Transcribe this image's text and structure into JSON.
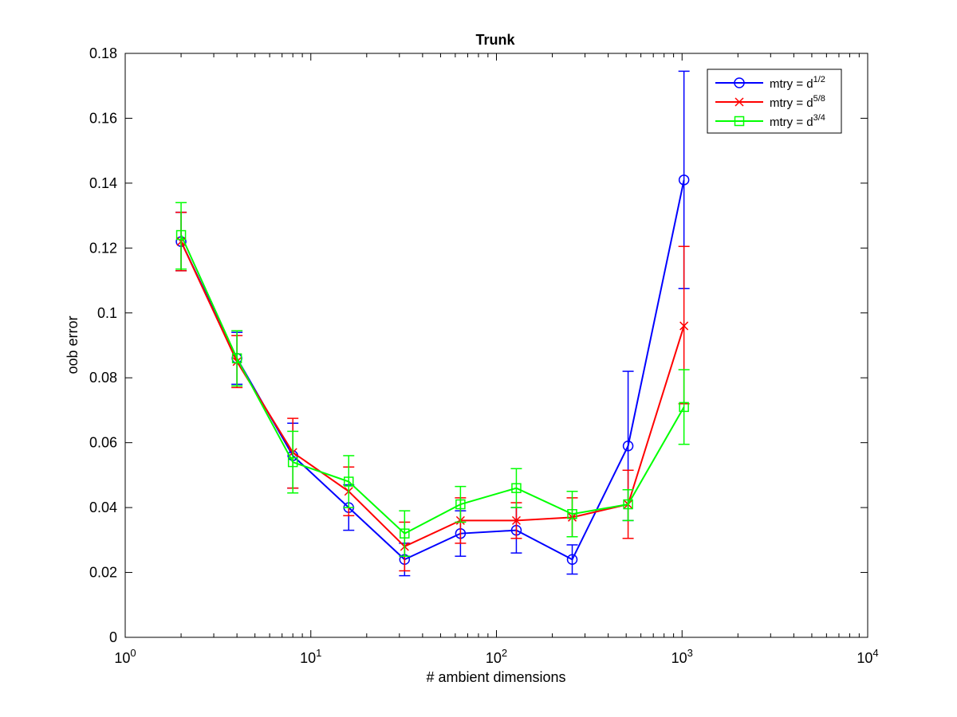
{
  "chart_data": {
    "type": "line",
    "title": "Trunk",
    "xlabel": "# ambient dimensions",
    "ylabel": "oob error",
    "xscale": "log",
    "xlim": [
      1,
      10000
    ],
    "ylim": [
      0,
      0.18
    ],
    "x_ticks": [
      {
        "value": 1,
        "base": "10",
        "exp": "0"
      },
      {
        "value": 10,
        "base": "10",
        "exp": "1"
      },
      {
        "value": 100,
        "base": "10",
        "exp": "2"
      },
      {
        "value": 1000,
        "base": "10",
        "exp": "3"
      },
      {
        "value": 10000,
        "base": "10",
        "exp": "4"
      }
    ],
    "y_ticks": [
      {
        "value": 0,
        "label": "0"
      },
      {
        "value": 0.02,
        "label": "0.02"
      },
      {
        "value": 0.04,
        "label": "0.04"
      },
      {
        "value": 0.06,
        "label": "0.06"
      },
      {
        "value": 0.08,
        "label": "0.08"
      },
      {
        "value": 0.1,
        "label": "0.1"
      },
      {
        "value": 0.12,
        "label": "0.12"
      },
      {
        "value": 0.14,
        "label": "0.14"
      },
      {
        "value": 0.16,
        "label": "0.16"
      },
      {
        "value": 0.18,
        "label": "0.18"
      }
    ],
    "x": [
      2,
      4,
      8,
      16,
      32,
      64,
      128,
      256,
      512,
      1024
    ],
    "legend_position": "top-right",
    "grid": false,
    "series": [
      {
        "name_prefix": "mtry = d",
        "name_exp": "1/2",
        "color": "#0000ff",
        "marker": "circle",
        "values": [
          0.122,
          0.086,
          0.056,
          0.04,
          0.024,
          0.032,
          0.033,
          0.024,
          0.059,
          0.141
        ],
        "err_low": [
          0.113,
          0.078,
          0.046,
          0.033,
          0.019,
          0.025,
          0.026,
          0.0195,
          0.036,
          0.1075
        ],
        "err_high": [
          0.131,
          0.094,
          0.066,
          0.047,
          0.029,
          0.039,
          0.04,
          0.0285,
          0.082,
          0.1745
        ]
      },
      {
        "name_prefix": "mtry = d",
        "name_exp": "5/8",
        "color": "#ff0000",
        "marker": "x",
        "values": [
          0.122,
          0.085,
          0.057,
          0.045,
          0.028,
          0.036,
          0.036,
          0.037,
          0.041,
          0.096
        ],
        "err_low": [
          0.113,
          0.077,
          0.046,
          0.0375,
          0.0205,
          0.029,
          0.0305,
          0.031,
          0.0305,
          0.072
        ],
        "err_high": [
          0.131,
          0.093,
          0.0675,
          0.0525,
          0.0355,
          0.043,
          0.0415,
          0.043,
          0.0515,
          0.1205
        ]
      },
      {
        "name_prefix": "mtry = d",
        "name_exp": "3/4",
        "color": "#00ff00",
        "marker": "square",
        "values": [
          0.124,
          0.086,
          0.054,
          0.048,
          0.032,
          0.041,
          0.046,
          0.038,
          0.041,
          0.071
        ],
        "err_low": [
          0.1135,
          0.0775,
          0.0445,
          0.04,
          0.025,
          0.0355,
          0.04,
          0.031,
          0.036,
          0.0595
        ],
        "err_high": [
          0.134,
          0.0945,
          0.0635,
          0.056,
          0.039,
          0.0465,
          0.052,
          0.045,
          0.0455,
          0.0825
        ]
      }
    ]
  }
}
